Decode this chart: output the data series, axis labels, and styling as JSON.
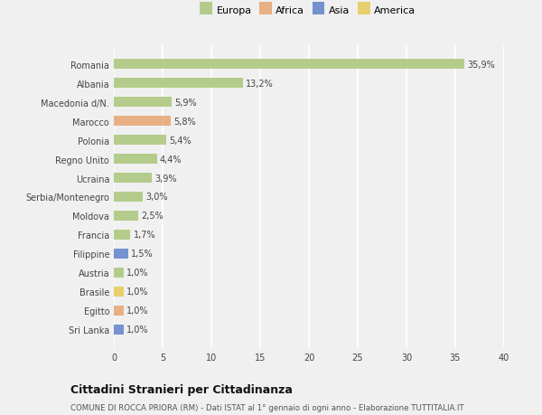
{
  "countries": [
    "Romania",
    "Albania",
    "Macedonia d/N.",
    "Marocco",
    "Polonia",
    "Regno Unito",
    "Ucraina",
    "Serbia/Montenegro",
    "Moldova",
    "Francia",
    "Filippine",
    "Austria",
    "Brasile",
    "Egitto",
    "Sri Lanka"
  ],
  "values": [
    35.9,
    13.2,
    5.9,
    5.8,
    5.4,
    4.4,
    3.9,
    3.0,
    2.5,
    1.7,
    1.5,
    1.0,
    1.0,
    1.0,
    1.0
  ],
  "labels": [
    "35,9%",
    "13,2%",
    "5,9%",
    "5,8%",
    "5,4%",
    "4,4%",
    "3,9%",
    "3,0%",
    "2,5%",
    "1,7%",
    "1,5%",
    "1,0%",
    "1,0%",
    "1,0%",
    "1,0%"
  ],
  "categories": [
    "Europa",
    "Europa",
    "Europa",
    "Africa",
    "Europa",
    "Europa",
    "Europa",
    "Europa",
    "Europa",
    "Europa",
    "Asia",
    "Europa",
    "America",
    "Africa",
    "Asia"
  ],
  "colors": {
    "Europa": "#aec880",
    "Africa": "#e8a878",
    "Asia": "#6688cc",
    "America": "#e8cc60"
  },
  "legend_order": [
    "Europa",
    "Africa",
    "Asia",
    "America"
  ],
  "legend_colors": [
    "#aec880",
    "#e8a878",
    "#6688cc",
    "#e8cc60"
  ],
  "title": "Cittadini Stranieri per Cittadinanza",
  "subtitle": "COMUNE DI ROCCA PRIORA (RM) - Dati ISTAT al 1° gennaio di ogni anno - Elaborazione TUTTITALIA.IT",
  "xlim": [
    0,
    40
  ],
  "xticks": [
    0,
    5,
    10,
    15,
    20,
    25,
    30,
    35,
    40
  ],
  "background_color": "#f0f0f0",
  "plot_background": "#f0f0f0",
  "grid_color": "#ffffff"
}
